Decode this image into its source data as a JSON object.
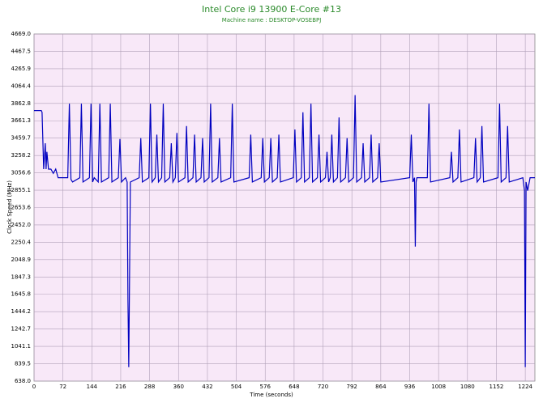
{
  "chart_data": {
    "type": "line",
    "title": "Intel Core i9 13900 E-Core #13",
    "subtitle": "Machine name : DESKTOP-VOSEBPJ",
    "x_label": "Time (seconds)",
    "y_label": "Clock Speed (MHz)",
    "xlim": [
      0,
      1248
    ],
    "ylim": [
      638,
      4669
    ],
    "xticks": [
      0,
      72,
      144,
      216,
      288,
      360,
      432,
      504,
      576,
      648,
      720,
      792,
      864,
      936,
      1008,
      1080,
      1152,
      1224
    ],
    "yticks": [
      {
        "value": 638,
        "label": "638.0"
      },
      839.5,
      1041.1,
      1242.7,
      1444.2,
      1645.8,
      1847.3,
      2048.9,
      2250.4,
      {
        "value": 2452,
        "label": "2452.0"
      },
      2653.6,
      2855.1,
      3056.6,
      3258.2,
      3459.7,
      3661.3,
      3862.8,
      4064.4,
      4265.9,
      4467.5,
      {
        "value": 4669,
        "label": "4669.0"
      }
    ],
    "grid": true,
    "series": [
      {
        "color": "#0000c0",
        "x": [
          0,
          18,
          20,
          24,
          28,
          30,
          32,
          36,
          42,
          48,
          54,
          60,
          66,
          84,
          88,
          92,
          96,
          114,
          118,
          122,
          138,
          142,
          146,
          150,
          160,
          164,
          168,
          186,
          190,
          194,
          210,
          214,
          218,
          228,
          232,
          234,
          236,
          240,
          262,
          266,
          270,
          286,
          290,
          294,
          302,
          306,
          310,
          318,
          322,
          326,
          338,
          342,
          346,
          352,
          356,
          360,
          376,
          380,
          384,
          396,
          400,
          404,
          416,
          420,
          424,
          436,
          440,
          444,
          458,
          462,
          466,
          490,
          494,
          498,
          536,
          540,
          544,
          566,
          570,
          574,
          586,
          590,
          594,
          606,
          610,
          614,
          646,
          650,
          654,
          666,
          670,
          674,
          686,
          690,
          694,
          706,
          710,
          714,
          726,
          730,
          734,
          738,
          742,
          746,
          756,
          760,
          764,
          776,
          780,
          784,
          796,
          800,
          804,
          816,
          820,
          824,
          836,
          840,
          844,
          856,
          860,
          864,
          936,
          940,
          944,
          948,
          950,
          952,
          954,
          980,
          984,
          988,
          1036,
          1040,
          1044,
          1056,
          1060,
          1064,
          1096,
          1100,
          1104,
          1112,
          1116,
          1120,
          1156,
          1160,
          1164,
          1176,
          1180,
          1184,
          1218,
          1222,
          1224,
          1226,
          1230,
          1236,
          1248
        ],
        "values": [
          3780,
          3780,
          3760,
          3100,
          3400,
          3100,
          3300,
          3100,
          3100,
          3050,
          3100,
          3000,
          3000,
          3000,
          3860,
          2980,
          2950,
          3000,
          3860,
          2950,
          3000,
          3860,
          2950,
          3000,
          2950,
          3860,
          2950,
          3000,
          3860,
          2950,
          3000,
          3450,
          2950,
          3000,
          2950,
          1580,
          800,
          2950,
          3000,
          3460,
          2950,
          3000,
          3860,
          2950,
          3000,
          3500,
          2950,
          3000,
          3860,
          2950,
          3000,
          3400,
          2950,
          3000,
          3520,
          2950,
          3000,
          3600,
          2950,
          3000,
          3500,
          2950,
          3000,
          3460,
          2950,
          3000,
          3860,
          2950,
          3000,
          3460,
          2950,
          3000,
          3860,
          2950,
          3000,
          3500,
          2950,
          3000,
          3460,
          2950,
          3000,
          3460,
          2950,
          3000,
          3500,
          2950,
          3000,
          3560,
          2950,
          3000,
          3760,
          2950,
          3000,
          3860,
          2950,
          3000,
          3500,
          2950,
          3000,
          3300,
          2950,
          3000,
          3500,
          2950,
          3000,
          3700,
          2950,
          3000,
          3460,
          2950,
          3000,
          3960,
          2950,
          3000,
          3400,
          2950,
          3000,
          3500,
          2950,
          3000,
          3400,
          2950,
          3000,
          3500,
          2950,
          3000,
          2200,
          2950,
          3000,
          3000,
          3860,
          2950,
          3000,
          3300,
          2950,
          3000,
          3560,
          2950,
          3000,
          3460,
          2950,
          3000,
          3600,
          2950,
          3000,
          3860,
          2950,
          3000,
          3600,
          2950,
          3000,
          2850,
          800,
          2950,
          2850,
          3000,
          3000
        ]
      }
    ]
  }
}
